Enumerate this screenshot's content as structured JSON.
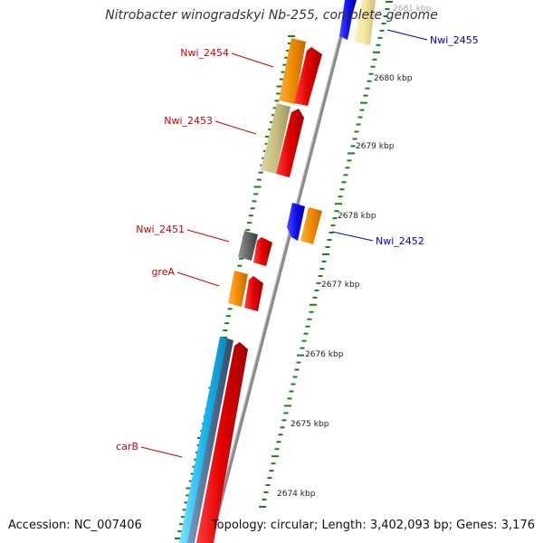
{
  "title": "Nitrobacter winogradskyi Nb-255, complete genome",
  "accession": "Accession: NC_007406",
  "topology": "Topology: circular; Length: 3,402,093 bp; Genes: 3,176",
  "colors": {
    "backbone": "#888888",
    "tick": "#1a7f1a",
    "red_label": "#d10000",
    "blue_label": "#0000cc",
    "kbp_text": "#222222"
  },
  "kbp_labels": [
    "2681 kbp",
    "2680 kbp",
    "2679 kbp",
    "2678 kbp",
    "2677 kbp",
    "2676 kbp",
    "2675 kbp",
    "2674 kbp"
  ],
  "gene_labels": [
    {
      "text": "Nwi_2455",
      "color": "blue"
    },
    {
      "text": "Nwi_2454",
      "color": "red"
    },
    {
      "text": "Nwi_2453",
      "color": "red"
    },
    {
      "text": "Nwi_2452",
      "color": "blue"
    },
    {
      "text": "Nwi_2451",
      "color": "red"
    },
    {
      "text": "greA",
      "color": "red"
    },
    {
      "text": "carB",
      "color": "red"
    }
  ]
}
